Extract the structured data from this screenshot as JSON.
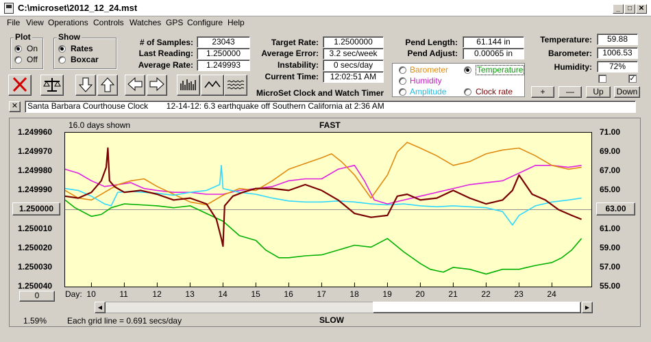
{
  "window": {
    "title": "C:\\microset\\2012_12_24.mst"
  },
  "menu": [
    "File",
    "View",
    "Operations",
    "Controls",
    "Watches",
    "GPS",
    "Configure",
    "Help"
  ],
  "plot_group": {
    "title": "Plot",
    "on": "On",
    "off": "Off",
    "selected": "On"
  },
  "show_group": {
    "title": "Show",
    "rates": "Rates",
    "boxcar": "Boxcar",
    "selected": "Rates"
  },
  "stats": {
    "samples_label": "# of Samples:",
    "samples": "23043",
    "last_label": "Last Reading:",
    "last": "1.250000",
    "avg_label": "Average Rate:",
    "avg": "1.249993"
  },
  "rates": {
    "target_label": "Target Rate:",
    "target": "1.2500000",
    "error_label": "Average Error:",
    "error": "3.2 sec/week",
    "instab_label": "Instability:",
    "instab": "0 secs/day",
    "time_label": "Current Time:",
    "time": "12:02:51 AM",
    "app_title": "MicroSet Clock and Watch Timer"
  },
  "pend": {
    "length_label": "Pend Length:",
    "length": "61.144 in",
    "adjust_label": "Pend Adjust:",
    "adjust": "0.00065 in"
  },
  "sensors": {
    "barometer": "Barometer",
    "temperature": "Temperature",
    "humidity": "Humidity",
    "amplitude": "Amplitude",
    "clock_rate": "Clock rate",
    "selected": "Temperature"
  },
  "env": {
    "temp_label": "Temperature:",
    "temp": "59.88",
    "baro_label": "Barometer:",
    "baro": "1006.53",
    "hum_label": "Humidity:",
    "hum": "72%",
    "check1": false,
    "check2": true
  },
  "adjust_buttons": {
    "plus": "+",
    "minus": "—",
    "up": "Up",
    "down": "Down"
  },
  "status": {
    "close": "✕",
    "message": "Santa Barbara Courthouse Clock        12-14-12: 6.3 earthquake off Southern California at 2:36 AM"
  },
  "plot": {
    "days_shown": "16.0 days shown",
    "fast": "FAST",
    "slow": "SLOW",
    "grid_note": "Each grid line = 0.691 secs/day",
    "percent": "1.59%",
    "left_button": "1.250000",
    "right_button": "63.00",
    "offset_button": "0",
    "day_label": "Day:"
  },
  "colors": {
    "rate": "#7a0000",
    "barometer": "#e08a10",
    "temperature": "#00b000",
    "humidity": "#e020e0",
    "amplitude": "#30d8ff",
    "plot_bg": "#ffffc8"
  },
  "chart_data": {
    "type": "line",
    "x_label": "Day",
    "x_ticks": [
      "10",
      "11",
      "12",
      "13",
      "14",
      "15",
      "16",
      "17",
      "18",
      "19",
      "20",
      "21",
      "22",
      "23",
      "24"
    ],
    "xlim": [
      9.2,
      25.2
    ],
    "y_left_ticks": [
      "1.249960",
      "1.249970",
      "1.249980",
      "1.249990",
      "1.250000",
      "1.250010",
      "1.250020",
      "1.250030",
      "1.250040"
    ],
    "y_right_ticks": [
      "71.00",
      "69.00",
      "67.00",
      "65.00",
      "63.00",
      "61.00",
      "59.00",
      "57.00",
      "55.00"
    ],
    "ylim_left": [
      1.24996,
      1.25004
    ],
    "ylim_right": [
      55,
      71
    ],
    "grid": "off",
    "series": [
      {
        "name": "Temperature",
        "color": "#00b000",
        "x": [
          9.2,
          9.5,
          10.0,
          10.3,
          10.6,
          11.0,
          11.5,
          12.0,
          12.5,
          13.0,
          13.5,
          14.0,
          14.5,
          15.0,
          15.3,
          15.7,
          16.0,
          16.5,
          17.0,
          17.5,
          18.0,
          18.5,
          19.0,
          19.5,
          20.0,
          20.3,
          20.7,
          21.0,
          21.5,
          22.0,
          22.5,
          23.0,
          23.5,
          24.0,
          24.3,
          24.6,
          24.9
        ],
        "y": [
          64.0,
          63.2,
          62.3,
          62.5,
          63.2,
          63.6,
          63.5,
          63.4,
          63.2,
          63.4,
          62.6,
          61.8,
          60.3,
          59.8,
          58.8,
          58.0,
          58.0,
          58.2,
          58.3,
          58.8,
          59.3,
          59.1,
          60.0,
          58.6,
          57.4,
          56.8,
          56.5,
          57.0,
          56.8,
          56.3,
          56.8,
          56.8,
          57.2,
          57.5,
          58.0,
          58.8,
          60.0
        ]
      },
      {
        "name": "Humidity",
        "color": "#e020e0",
        "x": [
          9.2,
          9.6,
          10.0,
          10.4,
          10.8,
          11.2,
          11.6,
          12.0,
          12.5,
          13.0,
          13.5,
          14.0,
          14.5,
          15.0,
          15.5,
          16.0,
          16.5,
          17.0,
          17.5,
          18.0,
          18.3,
          18.6,
          19.0,
          19.5,
          20.0,
          20.5,
          21.0,
          21.5,
          22.0,
          22.5,
          23.0,
          23.5,
          24.0,
          24.5,
          24.9
        ],
        "y": [
          67.2,
          66.8,
          66.0,
          65.4,
          65.6,
          65.8,
          65.2,
          65.0,
          64.8,
          64.8,
          64.6,
          64.6,
          65.0,
          65.2,
          65.4,
          66.0,
          66.2,
          66.2,
          67.2,
          67.6,
          66.0,
          64.0,
          63.6,
          64.0,
          64.4,
          64.8,
          65.2,
          65.6,
          65.8,
          66.0,
          66.8,
          67.6,
          67.6,
          67.4,
          67.6
        ]
      },
      {
        "name": "Barometer",
        "color": "#e08a10",
        "x": [
          9.2,
          9.6,
          10.0,
          10.4,
          10.8,
          11.2,
          11.6,
          12.0,
          12.5,
          13.0,
          13.5,
          14.0,
          14.5,
          15.0,
          15.5,
          16.0,
          16.5,
          17.0,
          17.3,
          17.6,
          18.0,
          18.5,
          19.0,
          19.3,
          19.6,
          20.0,
          20.5,
          21.0,
          21.5,
          22.0,
          22.5,
          23.0,
          23.5,
          24.0,
          24.5,
          24.9
        ],
        "y": [
          65.0,
          64.2,
          64.0,
          64.8,
          65.6,
          66.0,
          66.2,
          65.4,
          64.6,
          63.8,
          63.5,
          64.5,
          65.2,
          65.0,
          66.0,
          67.2,
          67.8,
          68.4,
          68.8,
          68.0,
          66.6,
          64.2,
          66.6,
          69.0,
          70.0,
          69.4,
          68.6,
          67.6,
          68.0,
          68.8,
          69.2,
          69.4,
          68.6,
          67.6,
          67.2,
          67.4
        ]
      },
      {
        "name": "Amplitude",
        "color": "#30d8ff",
        "x": [
          9.2,
          9.6,
          10.0,
          10.4,
          10.6,
          10.8,
          11.2,
          11.6,
          12.0,
          12.5,
          13.0,
          13.5,
          13.9,
          13.95,
          14.0,
          14.5,
          15.0,
          15.5,
          16.0,
          16.5,
          17.0,
          17.5,
          18.0,
          18.5,
          19.0,
          19.5,
          20.0,
          20.5,
          21.0,
          21.5,
          22.0,
          22.5,
          22.8,
          23.0,
          23.5,
          24.0,
          24.5,
          24.9
        ],
        "y": [
          65.2,
          65.0,
          64.4,
          63.6,
          63.4,
          64.8,
          64.9,
          64.8,
          64.7,
          64.5,
          64.8,
          65.0,
          65.6,
          67.6,
          65.2,
          64.8,
          64.6,
          64.2,
          63.9,
          63.8,
          63.8,
          63.9,
          63.8,
          63.6,
          63.5,
          63.6,
          63.4,
          63.3,
          63.4,
          63.3,
          63.2,
          62.8,
          61.4,
          62.4,
          63.4,
          63.8,
          64.0,
          64.2
        ]
      },
      {
        "name": "Clock rate",
        "color": "#7a0000",
        "x": [
          9.2,
          9.6,
          10.0,
          10.3,
          10.45,
          10.5,
          10.55,
          10.7,
          11.0,
          11.5,
          12.0,
          12.5,
          13.0,
          13.5,
          13.8,
          13.95,
          14.0,
          14.05,
          14.3,
          14.6,
          15.0,
          15.5,
          16.0,
          16.5,
          17.0,
          17.5,
          18.0,
          18.5,
          19.0,
          19.3,
          19.6,
          20.0,
          20.5,
          21.0,
          21.5,
          22.0,
          22.5,
          22.8,
          23.0,
          23.4,
          23.8,
          24.2,
          24.6,
          24.9
        ],
        "y": [
          1.249993,
          1.249994,
          1.249991,
          1.249985,
          1.249978,
          1.249968,
          1.249985,
          1.249988,
          1.249991,
          1.24999,
          1.249992,
          1.249995,
          1.249994,
          1.249997,
          1.250005,
          1.250015,
          1.250019,
          1.249998,
          1.249993,
          1.249991,
          1.249989,
          1.249989,
          1.24999,
          1.249987,
          1.24999,
          1.249995,
          1.250002,
          1.250004,
          1.250003,
          1.249993,
          1.249992,
          1.249995,
          1.249994,
          1.24999,
          1.249994,
          1.249997,
          1.249995,
          1.24999,
          1.249982,
          1.249992,
          1.249995,
          1.25,
          1.250003,
          1.250005
        ]
      }
    ]
  }
}
